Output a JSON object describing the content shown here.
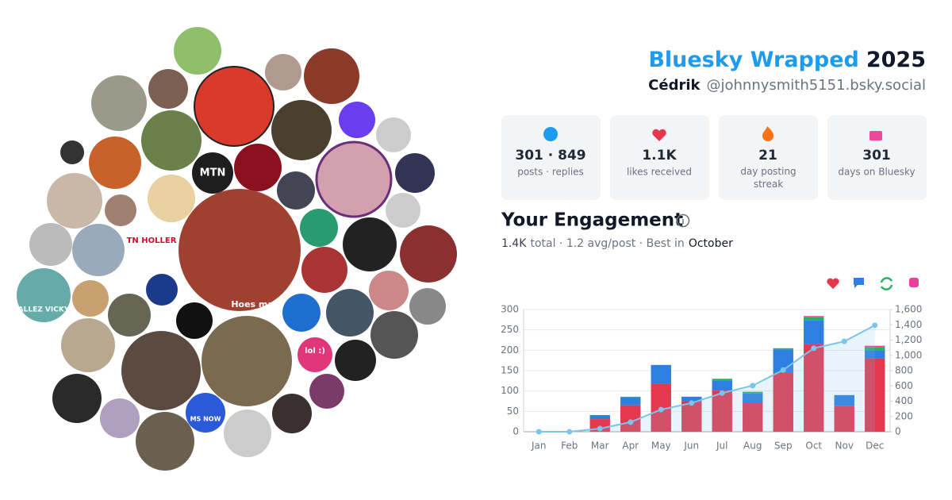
{
  "header": {
    "brand": "Bluesky Wrapped",
    "year": "2025",
    "display_name": "Cédrik",
    "handle": "@johnnysmith5151.bsky.social"
  },
  "avatar_texts": [
    "MTN",
    "TN HOLLER",
    "MS NOW",
    "lol :)",
    "ALLEZ VICKY",
    "Hoes mad"
  ],
  "stats": [
    {
      "value": "301 · 849",
      "label": "posts · replies"
    },
    {
      "value": "1.1K",
      "label": "likes received"
    },
    {
      "value": "21",
      "label": "day posting streak"
    },
    {
      "value": "301",
      "label": "days on Bluesky"
    }
  ],
  "section_title": "Your Engagement",
  "summary": [
    "1.4K",
    "total · 1.2 avg/post · Best in",
    "October"
  ],
  "chart_data": {
    "type": "bar",
    "stacked": true,
    "grid": true,
    "categories": [
      "Jan",
      "Feb",
      "Mar",
      "Apr",
      "May",
      "Jun",
      "Jul",
      "Aug",
      "Sep",
      "Oct",
      "Nov",
      "Dec"
    ],
    "series": [
      {
        "color": "#e5384f",
        "values": [
          0,
          0,
          31,
          65,
          117,
          74,
          101,
          72,
          146,
          215,
          63,
          180
        ]
      },
      {
        "color": "#2f7fe0",
        "values": [
          0,
          0,
          10,
          20,
          47,
          12,
          25,
          22,
          56,
          58,
          27,
          20
        ]
      },
      {
        "color": "#22b35e",
        "values": [
          0,
          0,
          0,
          1,
          0,
          0,
          4,
          4,
          3,
          8,
          0,
          8
        ]
      },
      {
        "color": "#ec3f9b",
        "values": [
          0,
          0,
          0,
          0,
          0,
          0,
          0,
          0,
          0,
          3,
          0,
          3
        ]
      },
      {
        "type": "line",
        "axis": "y2",
        "color": "#7cc4ea",
        "values": [
          0,
          0,
          41,
          126,
          290,
          376,
          506,
          604,
          809,
          1093,
          1183,
          1394
        ]
      }
    ],
    "ylim": [
      0,
      300
    ],
    "yticks": [
      0,
      50,
      100,
      150,
      200,
      250,
      300
    ],
    "y2lim": [
      0,
      1600
    ],
    "y2ticks": [
      0,
      200,
      400,
      600,
      800,
      {
        "value": 1000,
        "label": "1,000"
      },
      {
        "value": 1200,
        "label": "1,200"
      },
      {
        "value": 1400,
        "label": "1,400"
      },
      {
        "value": 1600,
        "label": "1,600"
      }
    ]
  }
}
